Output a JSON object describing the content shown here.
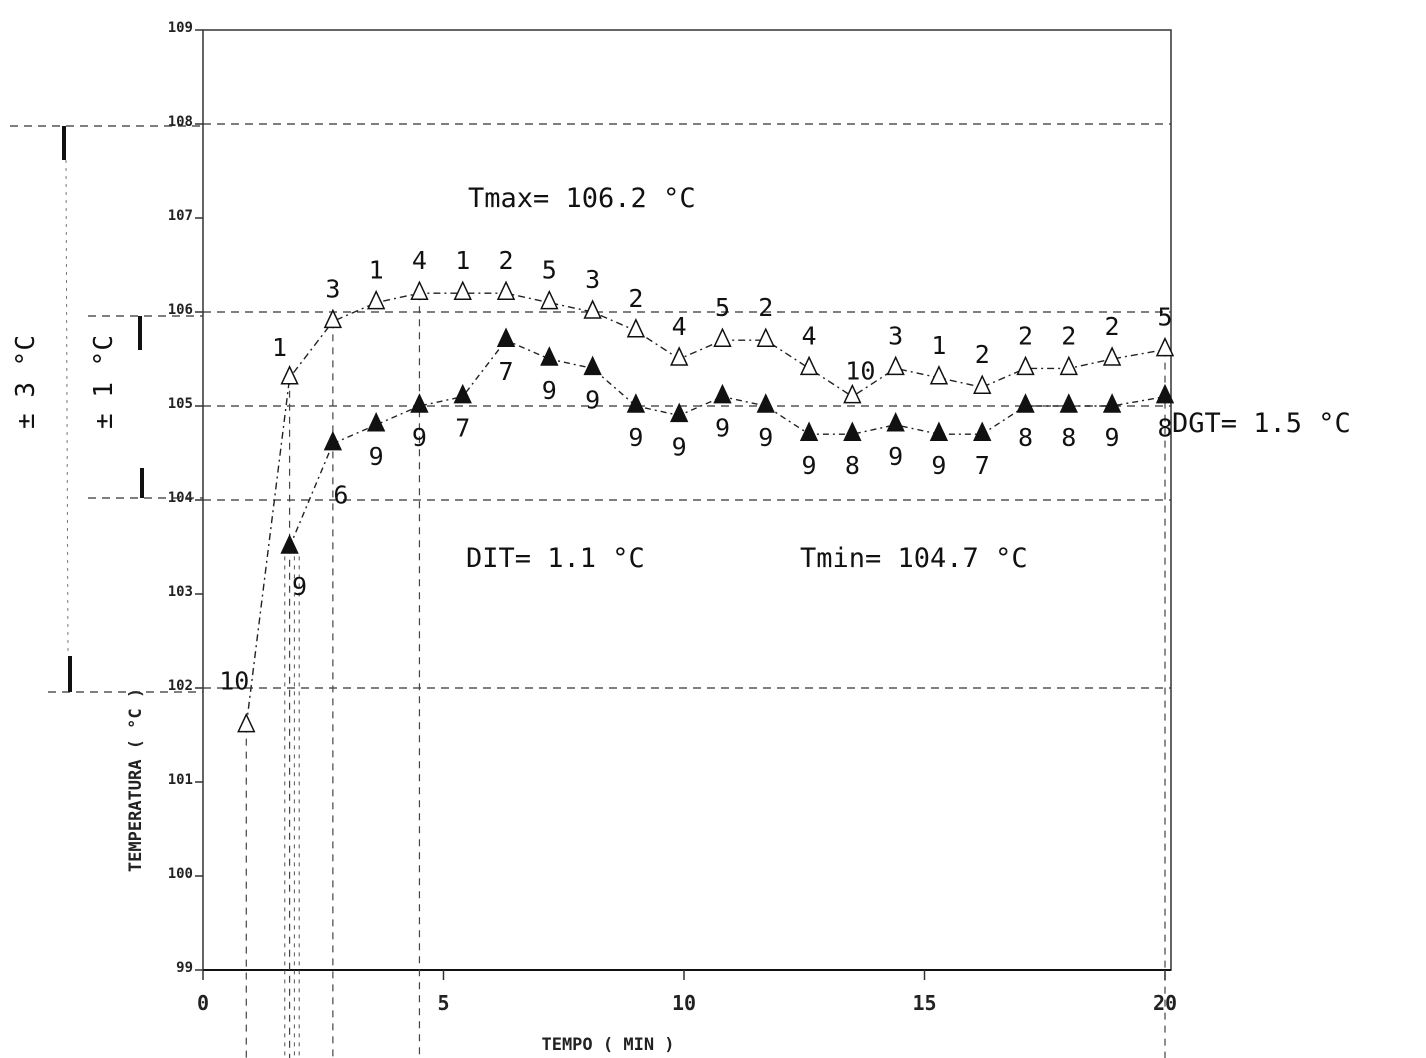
{
  "chart_data": {
    "type": "line",
    "xlabel": "TEMPO ( MIN )",
    "ylabel": "TEMPERATURA ( °C )",
    "xlim": [
      0,
      20
    ],
    "ylim": [
      99,
      109
    ],
    "x_ticks": [
      "0",
      "5",
      "10",
      "15",
      "20"
    ],
    "y_ticks": [
      "99",
      "100",
      "101",
      "102",
      "103",
      "104",
      "105",
      "106",
      "107",
      "108",
      "109"
    ],
    "grid": "dashed horizontal lines at 102, 104, 105, 106, 108",
    "annotations": {
      "tmax": "Tmax= 106.2 °C",
      "tmin": "Tmin= 104.7 °C",
      "dit": "DIT= 1.1 °C",
      "dgt": "DGT= 1.5 °C"
    },
    "tolerance_labels": {
      "outer": "± 3 °C",
      "inner": "± 1 °C"
    },
    "series": [
      {
        "marker": "open-triangle",
        "x": [
          0.9,
          1.8,
          2.7,
          3.6,
          4.5,
          5.4,
          6.3,
          7.2,
          8.1,
          9.0,
          9.9,
          10.8,
          11.7,
          12.6,
          13.5,
          14.4,
          15.3,
          16.2,
          17.1,
          18.0,
          18.9,
          20.0
        ],
        "y": [
          101.6,
          105.3,
          105.9,
          106.1,
          106.2,
          106.2,
          106.2,
          106.1,
          106.0,
          105.8,
          105.5,
          105.7,
          105.7,
          105.4,
          105.1,
          105.4,
          105.3,
          105.2,
          105.4,
          105.4,
          105.5,
          105.6
        ],
        "labels": [
          "10",
          "1",
          "3",
          "1",
          "4",
          "1",
          "2",
          "5",
          "3",
          "2",
          "4",
          "5",
          "2",
          "4",
          "10",
          "3",
          "1",
          "2",
          "2",
          "2",
          "2",
          "5"
        ]
      },
      {
        "marker": "filled-triangle",
        "x": [
          1.8,
          2.7,
          3.6,
          4.5,
          5.4,
          6.3,
          7.2,
          8.1,
          9.0,
          9.9,
          10.8,
          11.7,
          12.6,
          13.5,
          14.4,
          15.3,
          16.2,
          17.1,
          18.0,
          18.9,
          20.0
        ],
        "y": [
          103.5,
          104.6,
          104.8,
          105.0,
          105.1,
          105.7,
          105.5,
          105.4,
          105.0,
          104.9,
          105.1,
          105.0,
          104.7,
          104.7,
          104.8,
          104.7,
          104.7,
          105.0,
          105.0,
          105.0,
          105.1
        ],
        "labels": [
          "9",
          "6",
          "9",
          "9",
          "7",
          "7",
          "9",
          "9",
          "9",
          "9",
          "9",
          "9",
          "9",
          "8",
          "9",
          "9",
          "7",
          "8",
          "8",
          "9",
          "8"
        ]
      }
    ]
  }
}
